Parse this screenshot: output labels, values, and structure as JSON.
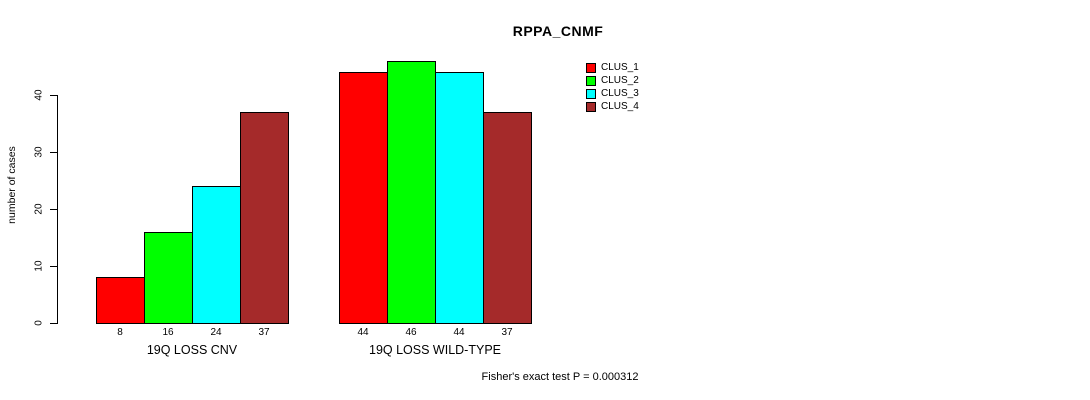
{
  "chart_data": {
    "type": "bar",
    "title": "RPPA_CNMF",
    "ylabel": "number of cases",
    "xlabel": "",
    "ylim": [
      0,
      46
    ],
    "y_ticks": [
      0,
      10,
      20,
      30,
      40
    ],
    "grid": false,
    "legend_position": "right",
    "series": [
      {
        "name": "CLUS_1",
        "color": "#FF0000"
      },
      {
        "name": "CLUS_2",
        "color": "#00FF00"
      },
      {
        "name": "CLUS_3",
        "color": "#00FFFF"
      },
      {
        "name": "CLUS_4",
        "color": "#A52A2A"
      }
    ],
    "groups": [
      {
        "label": "19Q LOSS CNV",
        "values": [
          8,
          16,
          24,
          37
        ]
      },
      {
        "label": "19Q LOSS WILD-TYPE",
        "values": [
          44,
          46,
          44,
          37
        ]
      }
    ],
    "bar_value_labels": [
      [
        "8",
        "16",
        "24",
        "37"
      ],
      [
        "44",
        "46",
        "44",
        "37"
      ]
    ],
    "annotation": "Fisher's exact test P = 0.000312"
  }
}
